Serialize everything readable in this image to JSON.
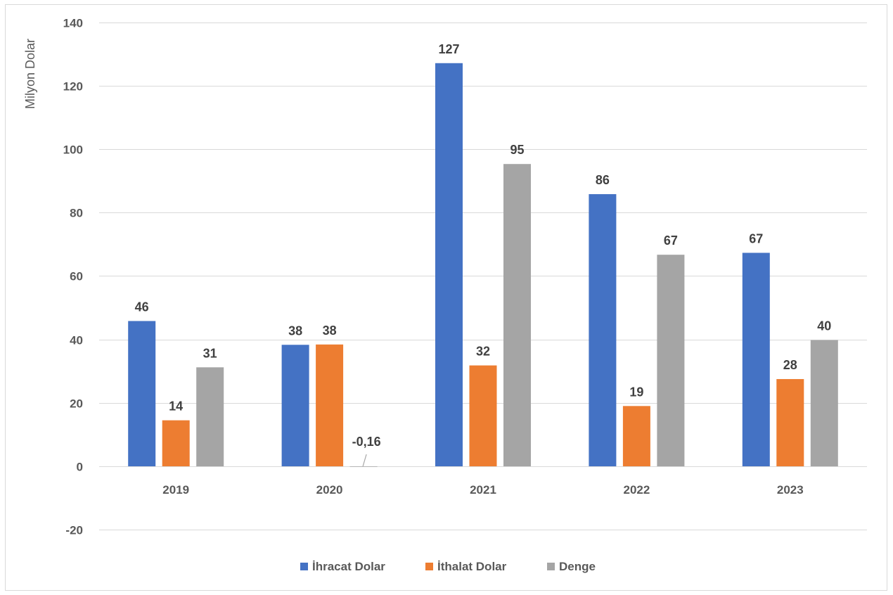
{
  "chart_data": {
    "type": "bar",
    "ylabel": "Milyon Dolar",
    "ylim": [
      -20,
      140
    ],
    "yticks": [
      -20,
      0,
      20,
      40,
      60,
      80,
      100,
      120,
      140
    ],
    "categories": [
      "2019",
      "2020",
      "2021",
      "2022",
      "2023"
    ],
    "series": [
      {
        "name": "İhracat Dolar",
        "color": "#4472c4",
        "values": [
          45.8,
          38.3,
          127.1,
          85.8,
          67.3
        ],
        "labels": [
          "46",
          "38",
          "127",
          "86",
          "67"
        ]
      },
      {
        "name": "İthalat Dolar",
        "color": "#ed7d31",
        "values": [
          14.5,
          38.4,
          31.8,
          19.0,
          27.5
        ],
        "labels": [
          "14",
          "38",
          "32",
          "19",
          "28"
        ]
      },
      {
        "name": "Denge",
        "color": "#a5a5a5",
        "values": [
          31.2,
          -0.16,
          95.3,
          66.7,
          39.8
        ],
        "labels": [
          "31",
          "-0,16",
          "95",
          "67",
          "40"
        ]
      }
    ],
    "grid": true,
    "legend_position": "bottom"
  }
}
